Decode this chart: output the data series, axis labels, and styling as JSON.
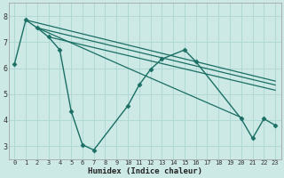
{
  "xlabel": "Humidex (Indice chaleur)",
  "xlim": [
    -0.5,
    23.5
  ],
  "ylim": [
    2.5,
    8.5
  ],
  "yticks": [
    3,
    4,
    5,
    6,
    7,
    8
  ],
  "xticks": [
    0,
    1,
    2,
    3,
    4,
    5,
    6,
    7,
    8,
    9,
    10,
    11,
    12,
    13,
    14,
    15,
    16,
    17,
    18,
    19,
    20,
    21,
    22,
    23
  ],
  "background_color": "#cce9e5",
  "grid_color": "#b0d8d4",
  "line_color": "#1a6e64",
  "series": [
    {
      "x": [
        0,
        1,
        2,
        3,
        4,
        5,
        6,
        7,
        10,
        11,
        12,
        13,
        15,
        16,
        20,
        21,
        22,
        23
      ],
      "y": [
        6.15,
        7.85,
        7.55,
        7.2,
        6.7,
        4.35,
        3.05,
        2.85,
        4.55,
        5.35,
        5.95,
        6.35,
        6.7,
        6.25,
        4.05,
        3.3,
        4.05,
        3.8
      ],
      "marker": "D",
      "ms": 2.5,
      "lw": 1.0
    },
    {
      "x": [
        1,
        23
      ],
      "y": [
        7.85,
        5.5
      ],
      "marker": null,
      "ms": 0,
      "lw": 0.9
    },
    {
      "x": [
        2,
        23
      ],
      "y": [
        7.55,
        5.35
      ],
      "marker": null,
      "ms": 0,
      "lw": 0.9
    },
    {
      "x": [
        3,
        23
      ],
      "y": [
        7.2,
        5.15
      ],
      "marker": null,
      "ms": 0,
      "lw": 0.9
    },
    {
      "x": [
        2,
        10,
        20
      ],
      "y": [
        7.55,
        6.0,
        4.1
      ],
      "marker": null,
      "ms": 0,
      "lw": 0.9
    }
  ],
  "tick_fontsize_x": 5.0,
  "tick_fontsize_y": 6.0,
  "xlabel_fontsize": 6.5,
  "xlabel_fontweight": "bold"
}
